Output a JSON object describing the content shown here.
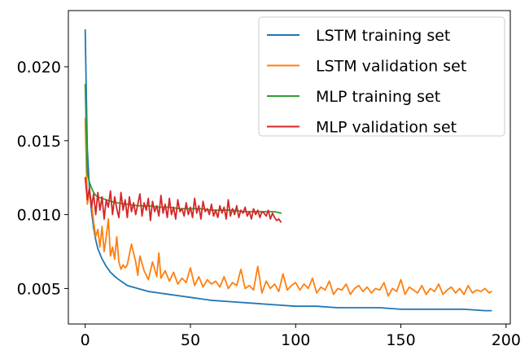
{
  "chart_data": {
    "type": "line",
    "title": "",
    "xlabel": "",
    "ylabel": "",
    "xlim": [
      -8,
      202
    ],
    "ylim": [
      0.0026,
      0.0238
    ],
    "grid": false,
    "legend_position": "top-right",
    "x_ticks": [
      0,
      50,
      100,
      150,
      200
    ],
    "x_tick_labels": [
      "0",
      "50",
      "100",
      "150",
      "200"
    ],
    "y_ticks": [
      0.005,
      0.01,
      0.015,
      0.02
    ],
    "y_tick_labels": [
      "0.005",
      "0.010",
      "0.015",
      "0.020"
    ],
    "series": [
      {
        "name": "LSTM training set",
        "color": "#1f77b4",
        "x": [
          0,
          1,
          2,
          3,
          4,
          5,
          6,
          8,
          10,
          12,
          15,
          18,
          20,
          25,
          30,
          35,
          40,
          45,
          50,
          55,
          60,
          70,
          80,
          90,
          100,
          110,
          120,
          130,
          140,
          150,
          160,
          170,
          180,
          190,
          193
        ],
        "y": [
          0.0225,
          0.0145,
          0.0118,
          0.0102,
          0.0091,
          0.0083,
          0.0077,
          0.007,
          0.0065,
          0.0061,
          0.0057,
          0.0054,
          0.0052,
          0.005,
          0.0048,
          0.0047,
          0.0046,
          0.0045,
          0.0044,
          0.0043,
          0.0042,
          0.0041,
          0.004,
          0.0039,
          0.0038,
          0.0038,
          0.0037,
          0.0037,
          0.0037,
          0.0036,
          0.0036,
          0.0036,
          0.0036,
          0.0035,
          0.0035
        ]
      },
      {
        "name": "LSTM validation set",
        "color": "#ff7f0e",
        "x": [
          0,
          1,
          2,
          3,
          4,
          5,
          6,
          7,
          8,
          9,
          10,
          11,
          12,
          13,
          14,
          15,
          16,
          17,
          18,
          19,
          20,
          22,
          24,
          25,
          26,
          28,
          30,
          32,
          34,
          35,
          36,
          38,
          40,
          42,
          44,
          46,
          48,
          50,
          52,
          54,
          56,
          58,
          60,
          62,
          64,
          66,
          68,
          70,
          72,
          74,
          76,
          78,
          80,
          82,
          84,
          86,
          88,
          90,
          92,
          94,
          96,
          98,
          100,
          102,
          104,
          106,
          108,
          110,
          112,
          114,
          116,
          118,
          120,
          122,
          124,
          126,
          128,
          130,
          132,
          134,
          136,
          138,
          140,
          142,
          144,
          146,
          148,
          150,
          152,
          154,
          156,
          158,
          160,
          162,
          164,
          166,
          168,
          170,
          172,
          174,
          176,
          178,
          180,
          182,
          184,
          186,
          188,
          190,
          192,
          193
        ],
        "y": [
          0.0165,
          0.0107,
          0.0115,
          0.0108,
          0.0095,
          0.0085,
          0.009,
          0.0078,
          0.0092,
          0.0075,
          0.0085,
          0.0097,
          0.0072,
          0.0078,
          0.007,
          0.0085,
          0.0068,
          0.0063,
          0.0066,
          0.0064,
          0.0066,
          0.008,
          0.0068,
          0.0059,
          0.0072,
          0.0062,
          0.0056,
          0.0068,
          0.0058,
          0.0074,
          0.0057,
          0.0062,
          0.0055,
          0.0061,
          0.0053,
          0.0057,
          0.0054,
          0.0064,
          0.0052,
          0.0058,
          0.0051,
          0.0056,
          0.0053,
          0.0055,
          0.0051,
          0.0058,
          0.005,
          0.0054,
          0.0052,
          0.0063,
          0.005,
          0.0052,
          0.0049,
          0.0065,
          0.0047,
          0.0055,
          0.005,
          0.0053,
          0.0048,
          0.006,
          0.0049,
          0.0052,
          0.0054,
          0.0049,
          0.0053,
          0.005,
          0.0057,
          0.0047,
          0.0051,
          0.0049,
          0.0055,
          0.0046,
          0.005,
          0.0049,
          0.0053,
          0.0046,
          0.005,
          0.0052,
          0.0048,
          0.0051,
          0.0047,
          0.005,
          0.0049,
          0.0054,
          0.0045,
          0.005,
          0.0048,
          0.0056,
          0.0046,
          0.0051,
          0.0049,
          0.0047,
          0.0052,
          0.0046,
          0.005,
          0.0048,
          0.0053,
          0.0046,
          0.0049,
          0.0051,
          0.0047,
          0.005,
          0.0046,
          0.0052,
          0.0047,
          0.0049,
          0.0048,
          0.005,
          0.0047,
          0.0048
        ]
      },
      {
        "name": "MLP training set",
        "color": "#2ca02c",
        "x": [
          0,
          1,
          2,
          3,
          4,
          5,
          6,
          8,
          10,
          12,
          15,
          20,
          25,
          30,
          35,
          40,
          45,
          50,
          55,
          60,
          65,
          70,
          75,
          80,
          85,
          90,
          93
        ],
        "y": [
          0.0188,
          0.0128,
          0.0122,
          0.0118,
          0.0115,
          0.0113,
          0.0112,
          0.0111,
          0.011,
          0.0109,
          0.0108,
          0.0107,
          0.0106,
          0.0106,
          0.0105,
          0.0105,
          0.0104,
          0.0104,
          0.0104,
          0.0103,
          0.0103,
          0.0103,
          0.0102,
          0.0102,
          0.0102,
          0.0102,
          0.0101
        ]
      },
      {
        "name": "MLP validation set",
        "color": "#d62728",
        "x": [
          0,
          1,
          2,
          3,
          4,
          5,
          6,
          7,
          8,
          9,
          10,
          11,
          12,
          13,
          14,
          15,
          16,
          17,
          18,
          19,
          20,
          21,
          22,
          23,
          24,
          25,
          26,
          27,
          28,
          29,
          30,
          31,
          32,
          33,
          34,
          35,
          36,
          37,
          38,
          39,
          40,
          41,
          42,
          43,
          44,
          45,
          46,
          47,
          48,
          49,
          50,
          51,
          52,
          53,
          54,
          55,
          56,
          57,
          58,
          59,
          60,
          61,
          62,
          63,
          64,
          65,
          66,
          67,
          68,
          69,
          70,
          71,
          72,
          73,
          74,
          75,
          76,
          77,
          78,
          79,
          80,
          81,
          82,
          83,
          84,
          85,
          86,
          87,
          88,
          89,
          90,
          91,
          92,
          93
        ],
        "y": [
          0.0125,
          0.011,
          0.0118,
          0.0105,
          0.0114,
          0.01,
          0.0115,
          0.0103,
          0.0112,
          0.0097,
          0.011,
          0.0105,
          0.0116,
          0.01,
          0.0112,
          0.0104,
          0.0098,
          0.0115,
          0.0103,
          0.011,
          0.0098,
          0.0112,
          0.0102,
          0.0108,
          0.01,
          0.0107,
          0.0114,
          0.0099,
          0.0108,
          0.0103,
          0.0111,
          0.0096,
          0.0109,
          0.0102,
          0.0106,
          0.0099,
          0.0113,
          0.0101,
          0.0107,
          0.0098,
          0.0111,
          0.01,
          0.0105,
          0.0097,
          0.011,
          0.0102,
          0.0104,
          0.0099,
          0.0108,
          0.01,
          0.0105,
          0.0098,
          0.0111,
          0.0101,
          0.0106,
          0.0097,
          0.0109,
          0.0102,
          0.0104,
          0.01,
          0.0107,
          0.0099,
          0.0103,
          0.0098,
          0.0106,
          0.0101,
          0.0105,
          0.0097,
          0.011,
          0.0099,
          0.0104,
          0.01,
          0.0106,
          0.0098,
          0.0103,
          0.0101,
          0.0105,
          0.0099,
          0.0102,
          0.0097,
          0.0104,
          0.01,
          0.0103,
          0.0098,
          0.0102,
          0.0101,
          0.0099,
          0.0103,
          0.0097,
          0.0101,
          0.0098,
          0.0096,
          0.0097,
          0.0095
        ]
      }
    ]
  }
}
